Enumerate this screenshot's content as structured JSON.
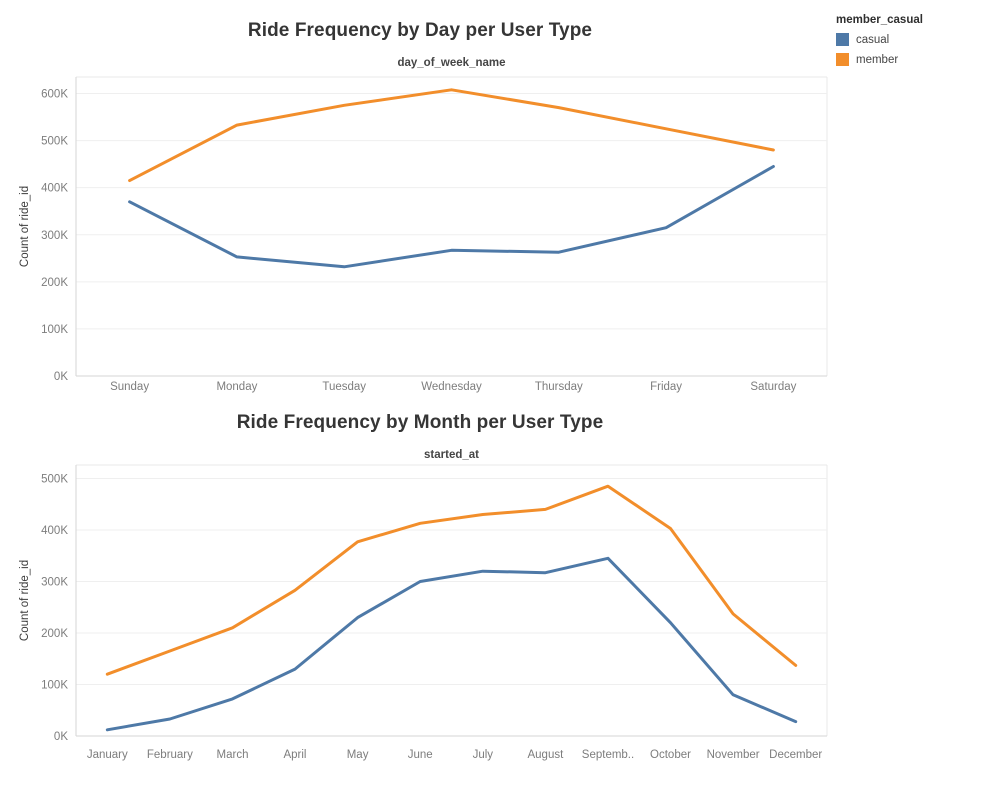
{
  "legend": {
    "title": "member_casual",
    "position": "top-right",
    "items": [
      {
        "label": "casual",
        "color": "#4e79a7"
      },
      {
        "label": "member",
        "color": "#f28e2b"
      }
    ]
  },
  "chart_data": [
    {
      "type": "line",
      "title": "Ride Frequency by Day per User Type",
      "subtitle": "day_of_week_name",
      "xlabel": "day_of_week_name",
      "ylabel": "Count of ride_id",
      "values_unit": "rides, thousands (K)",
      "grid": "horizontal",
      "legend": "shared top-right",
      "ylim_k": [
        0,
        640
      ],
      "y_ticks": [
        {
          "value_k": 0,
          "label": "0K"
        },
        {
          "value_k": 100,
          "label": "100K"
        },
        {
          "value_k": 200,
          "label": "200K"
        },
        {
          "value_k": 300,
          "label": "300K"
        },
        {
          "value_k": 400,
          "label": "400K"
        },
        {
          "value_k": 500,
          "label": "500K"
        },
        {
          "value_k": 600,
          "label": "600K"
        }
      ],
      "categories": [
        "Sunday",
        "Monday",
        "Tuesday",
        "Wednesday",
        "Thursday",
        "Friday",
        "Saturday"
      ],
      "series": [
        {
          "name": "casual",
          "color": "#4e79a7",
          "values_k": [
            370,
            253,
            232,
            267,
            263,
            315,
            445
          ]
        },
        {
          "name": "member",
          "color": "#f28e2b",
          "values_k": [
            415,
            533,
            575,
            608,
            570,
            525,
            480
          ]
        }
      ]
    },
    {
      "type": "line",
      "title": "Ride Frequency by Month per User Type",
      "subtitle": "started_at",
      "xlabel": "started_at",
      "ylabel": "Count of ride_id",
      "values_unit": "rides, thousands (K)",
      "grid": "horizontal",
      "legend": "shared top-right",
      "ylim_k": [
        0,
        530
      ],
      "y_ticks": [
        {
          "value_k": 0,
          "label": "0K"
        },
        {
          "value_k": 100,
          "label": "100K"
        },
        {
          "value_k": 200,
          "label": "200K"
        },
        {
          "value_k": 300,
          "label": "300K"
        },
        {
          "value_k": 400,
          "label": "400K"
        },
        {
          "value_k": 500,
          "label": "500K"
        }
      ],
      "categories": [
        "January",
        "February",
        "March",
        "April",
        "May",
        "June",
        "July",
        "August",
        "Septemb..",
        "October",
        "November",
        "December"
      ],
      "series": [
        {
          "name": "casual",
          "color": "#4e79a7",
          "values_k": [
            12,
            33,
            72,
            130,
            230,
            300,
            320,
            317,
            345,
            220,
            80,
            28
          ]
        },
        {
          "name": "member",
          "color": "#f28e2b",
          "values_k": [
            120,
            165,
            210,
            283,
            377,
            413,
            430,
            440,
            485,
            403,
            237,
            137
          ]
        }
      ]
    }
  ]
}
